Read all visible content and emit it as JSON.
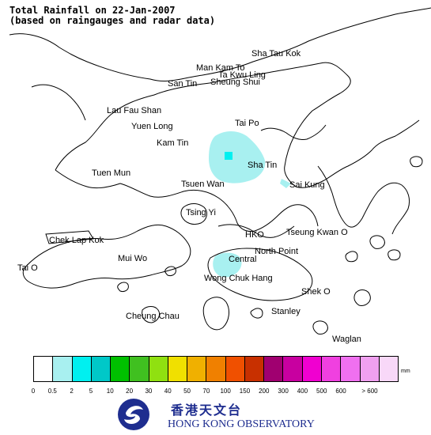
{
  "title": {
    "line1": "Total Rainfall on 22-Jan-2007",
    "line2": "(based on raingauges and radar data)"
  },
  "places": [
    "Sha Tau Kok",
    "Man Kam To",
    "Ta Kwu Ling",
    "San Tin",
    "Sheung Shui",
    "Lau Fau Shan",
    "Yuen Long",
    "Tai Po",
    "Kam Tin",
    "Sha Tin",
    "Tuen Mun",
    "Tsuen Wan",
    "Sai Kung",
    "Tsing Yi",
    "Chek Lap Kok",
    "HKO",
    "Tseung Kwan O",
    "Mui Wo",
    "North Point",
    "Central",
    "Tai O",
    "Wong Chuk Hang",
    "Shek O",
    "Cheung Chau",
    "Stanley",
    "Waglan"
  ],
  "legend": {
    "unit": "mm",
    "colors": [
      "#ffffff",
      "#a8f0f0",
      "#00f0f0",
      "#00c8c8",
      "#00c000",
      "#40c020",
      "#90e010",
      "#f0e000",
      "#f0b000",
      "#f08000",
      "#f05000",
      "#c83000",
      "#a00070",
      "#c800a0",
      "#f000d0",
      "#f040e0",
      "#f070f0",
      "#f0a0f0",
      "#f8d8f8"
    ],
    "ticks": [
      "0",
      "0.5",
      "2",
      "5",
      "10",
      "20",
      "30",
      "40",
      "50",
      "70",
      "100",
      "150",
      "200",
      "300",
      "400",
      "500",
      "600",
      "> 600"
    ]
  },
  "logo": {
    "chinese": "香港天文台",
    "english": "HONG KONG OBSERVATORY",
    "brand_color": "#1e2d8f"
  },
  "rain_colors": {
    "light": "#a8f0f0",
    "cell": "#00f0f0"
  }
}
